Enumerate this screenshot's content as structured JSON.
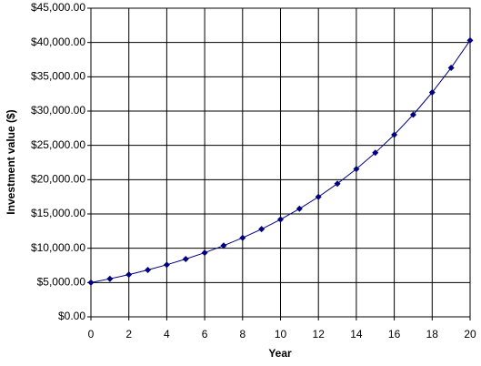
{
  "chart_data": {
    "type": "line",
    "xlabel": "Year",
    "ylabel": "Investment value ($)",
    "x": [
      0,
      1,
      2,
      3,
      4,
      5,
      6,
      7,
      8,
      9,
      10,
      11,
      12,
      13,
      14,
      15,
      16,
      17,
      18,
      19,
      20
    ],
    "series": [
      {
        "color": "#000080",
        "values": [
          5000,
          5550,
          6160,
          6840,
          7590,
          8430,
          9350,
          10380,
          11520,
          12790,
          14200,
          15760,
          17490,
          19420,
          21550,
          23920,
          26550,
          29470,
          32720,
          36310,
          40310
        ]
      }
    ],
    "xlim": [
      0,
      20
    ],
    "xticks": [
      0,
      2,
      4,
      6,
      8,
      10,
      12,
      14,
      16,
      18,
      20
    ],
    "ylim": [
      0,
      45000
    ],
    "yticks": [
      {
        "value": 0,
        "label": "$0.00"
      },
      {
        "value": 5000,
        "label": "$5,000.00"
      },
      {
        "value": 10000,
        "label": "$10,000.00"
      },
      {
        "value": 15000,
        "label": "$15,000.00"
      },
      {
        "value": 20000,
        "label": "$20,000.00"
      },
      {
        "value": 25000,
        "label": "$25,000.00"
      },
      {
        "value": 30000,
        "label": "$30,000.00"
      },
      {
        "value": 35000,
        "label": "$35,000.00"
      },
      {
        "value": 40000,
        "label": "$40,000.00"
      },
      {
        "value": 45000,
        "label": "$45,000.00"
      }
    ],
    "grid": true
  }
}
